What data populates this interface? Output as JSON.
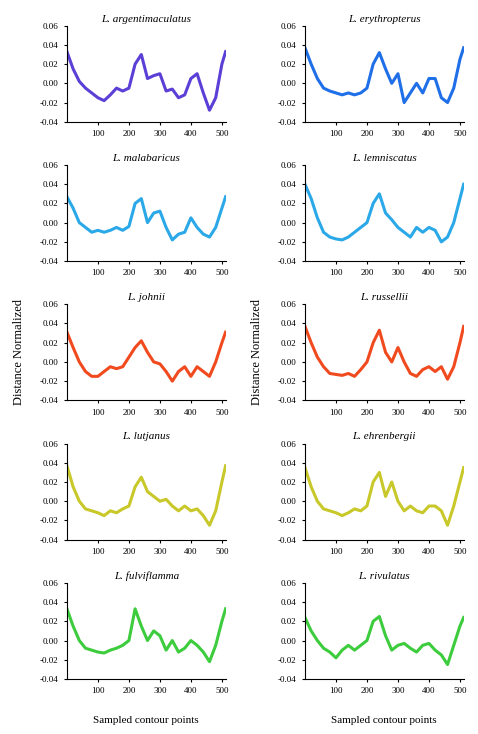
{
  "xlabel": "Sampled contour points",
  "ylabel": "Distance Normalized",
  "chart_data": [
    {
      "type": "line",
      "title": "L. argentimaculatus",
      "color": "#5b3fd6",
      "x": [
        0,
        20,
        40,
        60,
        80,
        100,
        120,
        140,
        160,
        180,
        200,
        220,
        240,
        260,
        280,
        300,
        320,
        340,
        360,
        380,
        400,
        420,
        440,
        460,
        480,
        500,
        512
      ],
      "values": [
        0.033,
        0.015,
        0.002,
        -0.005,
        -0.01,
        -0.015,
        -0.018,
        -0.012,
        -0.005,
        -0.008,
        -0.005,
        0.02,
        0.03,
        0.005,
        0.008,
        0.01,
        -0.008,
        -0.006,
        -0.015,
        -0.012,
        0.005,
        0.01,
        -0.01,
        -0.028,
        -0.015,
        0.02,
        0.033
      ],
      "xlim": [
        0,
        512
      ],
      "ylim": [
        -0.04,
        0.06
      ],
      "xticks": [
        100,
        200,
        300,
        400,
        500
      ],
      "yticks": [
        -0.04,
        -0.02,
        {
          "value": 0,
          "label": "0.00"
        },
        0.02,
        0.04,
        0.06
      ]
    },
    {
      "type": "line",
      "title": "L. erythropterus",
      "color": "#1e6fe8",
      "x": [
        0,
        20,
        40,
        60,
        80,
        100,
        120,
        140,
        160,
        180,
        200,
        220,
        240,
        260,
        280,
        300,
        320,
        340,
        360,
        380,
        400,
        420,
        440,
        460,
        480,
        500,
        512
      ],
      "values": [
        0.037,
        0.02,
        0.005,
        -0.005,
        -0.008,
        -0.01,
        -0.012,
        -0.01,
        -0.012,
        -0.01,
        -0.005,
        0.02,
        0.032,
        0.015,
        0.0,
        0.01,
        -0.02,
        -0.01,
        0.0,
        -0.01,
        0.005,
        0.005,
        -0.015,
        -0.02,
        -0.005,
        0.025,
        0.037
      ],
      "xlim": [
        0,
        512
      ],
      "ylim": [
        -0.04,
        0.06
      ],
      "xticks": [
        100,
        200,
        300,
        400,
        500
      ],
      "yticks": [
        -0.04,
        -0.02,
        {
          "value": 0,
          "label": "0.00"
        },
        0.02,
        0.04,
        0.06
      ]
    },
    {
      "type": "line",
      "title": "L. malabaricus",
      "color": "#2aa8e8",
      "x": [
        0,
        20,
        40,
        60,
        80,
        100,
        120,
        140,
        160,
        180,
        200,
        220,
        240,
        260,
        280,
        300,
        320,
        340,
        360,
        380,
        400,
        420,
        440,
        460,
        480,
        500,
        512
      ],
      "values": [
        0.027,
        0.015,
        0.0,
        -0.005,
        -0.01,
        -0.008,
        -0.01,
        -0.008,
        -0.005,
        -0.008,
        -0.004,
        0.02,
        0.025,
        0.0,
        0.01,
        0.012,
        -0.005,
        -0.018,
        -0.012,
        -0.01,
        0.005,
        -0.005,
        -0.012,
        -0.015,
        -0.005,
        0.015,
        0.027
      ],
      "xlim": [
        0,
        512
      ],
      "ylim": [
        -0.04,
        0.06
      ],
      "xticks": [
        100,
        200,
        300,
        400,
        500
      ],
      "yticks": [
        -0.04,
        -0.02,
        {
          "value": 0,
          "label": "0.00"
        },
        0.02,
        0.04,
        0.06
      ]
    },
    {
      "type": "line",
      "title": "L. lemniscatus",
      "color": "#2aa8e8",
      "x": [
        0,
        20,
        40,
        60,
        80,
        100,
        120,
        140,
        160,
        180,
        200,
        220,
        240,
        260,
        280,
        300,
        320,
        340,
        360,
        380,
        400,
        420,
        440,
        460,
        480,
        500,
        512
      ],
      "values": [
        0.04,
        0.025,
        0.005,
        -0.01,
        -0.015,
        -0.017,
        -0.018,
        -0.015,
        -0.01,
        -0.005,
        0.0,
        0.02,
        0.03,
        0.01,
        0.003,
        -0.005,
        -0.01,
        -0.015,
        -0.005,
        -0.01,
        -0.005,
        -0.008,
        -0.02,
        -0.015,
        0.0,
        0.025,
        0.04
      ],
      "xlim": [
        0,
        512
      ],
      "ylim": [
        -0.04,
        0.06
      ],
      "xticks": [
        100,
        200,
        300,
        400,
        500
      ],
      "yticks": [
        -0.04,
        -0.02,
        {
          "value": 0,
          "label": "0.00"
        },
        0.02,
        0.04,
        0.06
      ]
    },
    {
      "type": "line",
      "title": "L. johnii",
      "color": "#f04a1e",
      "x": [
        0,
        20,
        40,
        60,
        80,
        100,
        120,
        140,
        160,
        180,
        200,
        220,
        240,
        260,
        280,
        300,
        320,
        340,
        360,
        380,
        400,
        420,
        440,
        460,
        480,
        500,
        512
      ],
      "values": [
        0.031,
        0.015,
        0.0,
        -0.01,
        -0.015,
        -0.015,
        -0.01,
        -0.005,
        -0.007,
        -0.005,
        0.005,
        0.015,
        0.022,
        0.01,
        0.0,
        -0.002,
        -0.01,
        -0.02,
        -0.01,
        -0.005,
        -0.015,
        -0.005,
        -0.01,
        -0.015,
        0.0,
        0.02,
        0.031
      ],
      "xlim": [
        0,
        512
      ],
      "ylim": [
        -0.04,
        0.06
      ],
      "xticks": [
        100,
        200,
        300,
        400,
        500
      ],
      "yticks": [
        -0.04,
        -0.02,
        {
          "value": 0,
          "label": "0.00"
        },
        0.02,
        0.04,
        0.06
      ]
    },
    {
      "type": "line",
      "title": "L. russellii",
      "color": "#f04a1e",
      "x": [
        0,
        20,
        40,
        60,
        80,
        100,
        120,
        140,
        160,
        180,
        200,
        220,
        240,
        260,
        280,
        300,
        320,
        340,
        360,
        380,
        400,
        420,
        440,
        460,
        480,
        500,
        512
      ],
      "values": [
        0.037,
        0.02,
        0.005,
        -0.005,
        -0.012,
        -0.013,
        -0.014,
        -0.012,
        -0.015,
        -0.008,
        0.0,
        0.02,
        0.033,
        0.01,
        0.0,
        0.015,
        0.0,
        -0.012,
        -0.015,
        -0.008,
        -0.005,
        -0.01,
        -0.005,
        -0.018,
        -0.005,
        0.02,
        0.037
      ],
      "xlim": [
        0,
        512
      ],
      "ylim": [
        -0.04,
        0.06
      ],
      "xticks": [
        100,
        200,
        300,
        400,
        500
      ],
      "yticks": [
        -0.04,
        -0.02,
        {
          "value": 0,
          "label": "0.00"
        },
        0.02,
        0.04,
        0.06
      ]
    },
    {
      "type": "line",
      "title": "L. lutjanus",
      "color": "#c8c82a",
      "x": [
        0,
        20,
        40,
        60,
        80,
        100,
        120,
        140,
        160,
        180,
        200,
        220,
        240,
        260,
        280,
        300,
        320,
        340,
        360,
        380,
        400,
        420,
        440,
        460,
        480,
        500,
        512
      ],
      "values": [
        0.037,
        0.015,
        0.0,
        -0.008,
        -0.01,
        -0.012,
        -0.015,
        -0.01,
        -0.012,
        -0.008,
        -0.005,
        0.015,
        0.025,
        0.01,
        0.005,
        0.0,
        0.002,
        -0.005,
        -0.01,
        -0.005,
        -0.01,
        -0.008,
        -0.015,
        -0.025,
        -0.01,
        0.02,
        0.037
      ],
      "xlim": [
        0,
        512
      ],
      "ylim": [
        -0.04,
        0.06
      ],
      "xticks": [
        100,
        200,
        300,
        400,
        500
      ],
      "yticks": [
        -0.04,
        -0.02,
        {
          "value": 0,
          "label": "0.00"
        },
        0.02,
        0.04,
        0.06
      ]
    },
    {
      "type": "line",
      "title": "L. ehrenbergii",
      "color": "#c8c82a",
      "x": [
        0,
        20,
        40,
        60,
        80,
        100,
        120,
        140,
        160,
        180,
        200,
        220,
        240,
        260,
        280,
        300,
        320,
        340,
        360,
        380,
        400,
        420,
        440,
        460,
        480,
        500,
        512
      ],
      "values": [
        0.035,
        0.015,
        0.0,
        -0.008,
        -0.01,
        -0.012,
        -0.015,
        -0.012,
        -0.008,
        -0.01,
        -0.005,
        0.02,
        0.03,
        0.005,
        0.02,
        0.0,
        -0.01,
        -0.005,
        -0.01,
        -0.012,
        -0.005,
        -0.005,
        -0.01,
        -0.025,
        -0.005,
        0.02,
        0.035
      ],
      "xlim": [
        0,
        512
      ],
      "ylim": [
        -0.04,
        0.06
      ],
      "xticks": [
        100,
        200,
        300,
        400,
        500
      ],
      "yticks": [
        -0.04,
        -0.02,
        {
          "value": 0,
          "label": "0.00"
        },
        0.02,
        0.04,
        0.06
      ]
    },
    {
      "type": "line",
      "title": "L. fulviflamma",
      "color": "#3dcc3d",
      "x": [
        0,
        20,
        40,
        60,
        80,
        100,
        120,
        140,
        160,
        180,
        200,
        220,
        240,
        260,
        280,
        300,
        320,
        340,
        360,
        380,
        400,
        420,
        440,
        460,
        480,
        500,
        512
      ],
      "values": [
        0.033,
        0.015,
        0.0,
        -0.008,
        -0.01,
        -0.012,
        -0.013,
        -0.01,
        -0.008,
        -0.005,
        0.0,
        0.033,
        0.015,
        0.0,
        0.01,
        0.005,
        -0.01,
        0.0,
        -0.012,
        -0.008,
        0.0,
        -0.005,
        -0.012,
        -0.022,
        -0.005,
        0.02,
        0.033
      ],
      "xlim": [
        0,
        512
      ],
      "ylim": [
        -0.04,
        0.06
      ],
      "xticks": [
        100,
        200,
        300,
        400,
        500
      ],
      "yticks": [
        -0.04,
        -0.02,
        {
          "value": 0,
          "label": "0.00"
        },
        0.02,
        0.04,
        0.06
      ]
    },
    {
      "type": "line",
      "title": "L. rivulatus",
      "color": "#3dcc3d",
      "x": [
        0,
        20,
        40,
        60,
        80,
        100,
        120,
        140,
        160,
        180,
        200,
        220,
        240,
        260,
        280,
        300,
        320,
        340,
        360,
        380,
        400,
        420,
        440,
        460,
        480,
        500,
        512
      ],
      "values": [
        0.024,
        0.01,
        0.0,
        -0.008,
        -0.012,
        -0.018,
        -0.01,
        -0.005,
        -0.01,
        -0.005,
        0.0,
        0.02,
        0.025,
        0.005,
        -0.01,
        -0.005,
        -0.003,
        -0.008,
        -0.012,
        -0.005,
        -0.003,
        -0.01,
        -0.015,
        -0.025,
        -0.005,
        0.015,
        0.024
      ],
      "xlim": [
        0,
        512
      ],
      "ylim": [
        -0.04,
        0.06
      ],
      "xticks": [
        100,
        200,
        300,
        400,
        500
      ],
      "yticks": [
        -0.04,
        -0.02,
        {
          "value": 0,
          "label": "0.00"
        },
        0.02,
        0.04,
        0.06
      ]
    }
  ]
}
